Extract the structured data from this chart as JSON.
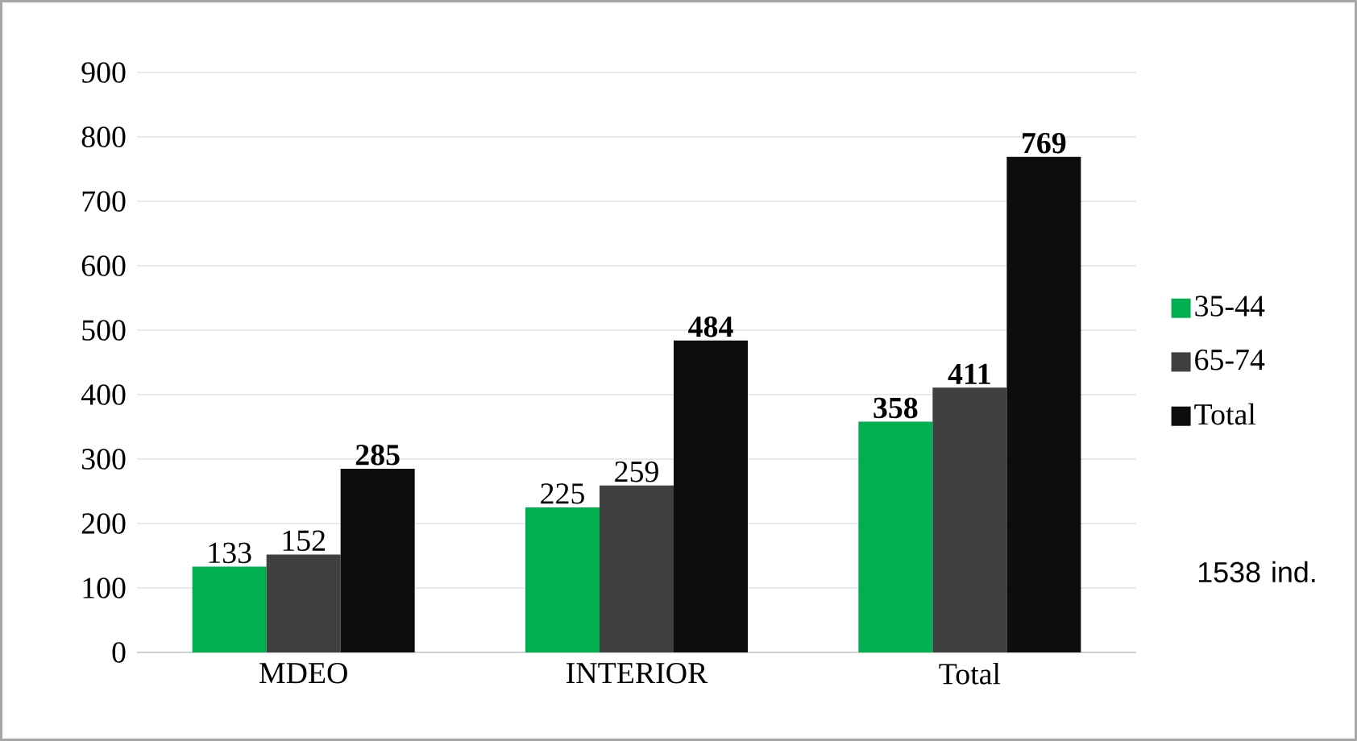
{
  "chart_data": {
    "type": "bar",
    "categories": [
      "MDEO",
      "INTERIOR",
      "Total"
    ],
    "series": [
      {
        "name": "35-44",
        "color": "#00b050",
        "values": [
          133,
          225,
          358
        ],
        "value_labels": [
          "133",
          "225",
          "**358**"
        ]
      },
      {
        "name": "65-74",
        "color": "#404040",
        "values": [
          152,
          259,
          411
        ],
        "value_labels": [
          "152",
          "259",
          "**411**"
        ]
      },
      {
        "name": "Total",
        "color": "#0d0d0d",
        "values": [
          285,
          484,
          769
        ],
        "value_labels": [
          "**285**",
          "**484**",
          "**769**"
        ]
      }
    ],
    "ylim": [
      0,
      900
    ],
    "yticks": [
      0,
      100,
      200,
      300,
      400,
      500,
      600,
      700,
      800,
      900
    ],
    "grid": "y",
    "legend": "right",
    "annotations": [
      "1538 ind."
    ]
  }
}
